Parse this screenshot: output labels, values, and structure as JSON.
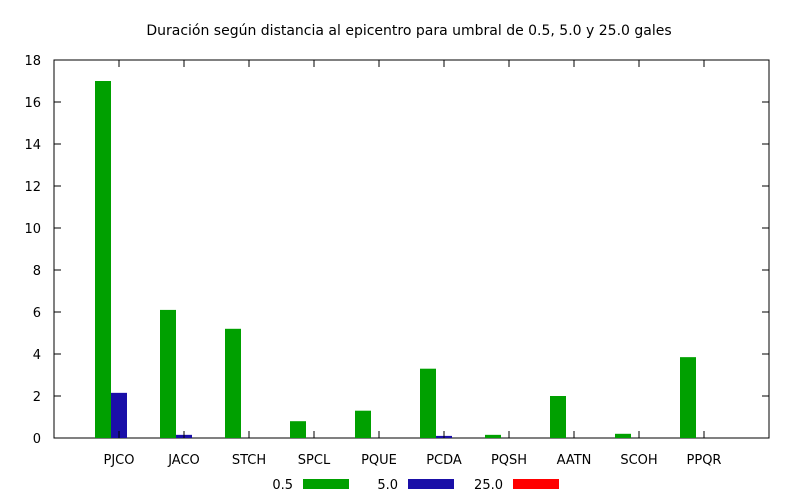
{
  "chart_data": {
    "type": "bar",
    "title": "Duración según distancia al epicentro para umbral de 0.5, 5.0 y 25.0 gales",
    "xlabel": "",
    "ylabel": "",
    "ylim": [
      0,
      18
    ],
    "yticks": [
      0,
      2,
      4,
      6,
      8,
      10,
      12,
      14,
      16,
      18
    ],
    "grid": false,
    "legend_position": "bottom",
    "categories": [
      "PJCO",
      "JACO",
      "STCH",
      "SPCL",
      "PQUE",
      "PCDA",
      "PQSH",
      "AATN",
      "SCOH",
      "PPQR"
    ],
    "series": [
      {
        "name": "0.5",
        "color": "#00a000",
        "values": [
          17.0,
          6.1,
          5.2,
          0.8,
          1.3,
          3.3,
          0.15,
          2.0,
          0.2,
          3.85
        ]
      },
      {
        "name": "5.0",
        "color": "#1a0fa8",
        "values": [
          2.15,
          0.15,
          0,
          0,
          0,
          0.1,
          0,
          0,
          0,
          0
        ]
      },
      {
        "name": "25.0",
        "color": "#ff0000",
        "values": [
          0,
          0,
          0,
          0,
          0,
          0,
          0,
          0,
          0,
          0
        ]
      }
    ]
  }
}
